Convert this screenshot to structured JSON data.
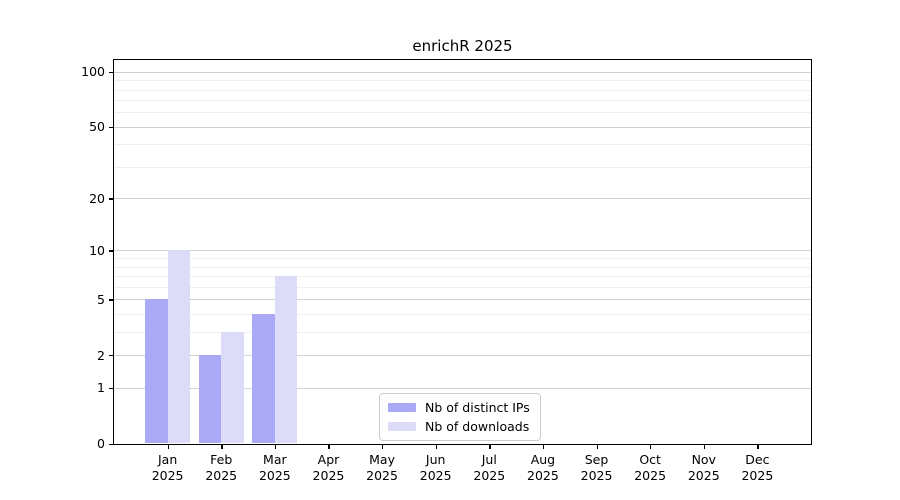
{
  "chart_data": {
    "type": "bar",
    "title": "enrichR 2025",
    "scale": "log1p",
    "x_months": [
      "Jan",
      "Feb",
      "Mar",
      "Apr",
      "May",
      "Jun",
      "Jul",
      "Aug",
      "Sep",
      "Oct",
      "Nov",
      "Dec"
    ],
    "x_year": "2025",
    "series": [
      {
        "name": "Nb of distinct IPs",
        "color": "#a9a9f5",
        "values": [
          5,
          2,
          4,
          0,
          0,
          0,
          0,
          0,
          0,
          0,
          0,
          0
        ]
      },
      {
        "name": "Nb of downloads",
        "color": "#dcdcf9",
        "values": [
          10,
          3,
          7,
          0,
          0,
          0,
          0,
          0,
          0,
          0,
          0,
          0
        ]
      }
    ],
    "y_ticks": [
      0,
      1,
      2,
      5,
      10,
      20,
      50,
      100
    ],
    "y_minor_ticks": [
      3,
      4,
      6,
      7,
      8,
      9,
      30,
      40,
      60,
      70,
      80,
      90
    ],
    "ylim": [
      0,
      116
    ],
    "grid": true,
    "legend_position": "lower center",
    "colors": {
      "grid_major": "#d2d2d2",
      "grid_minor": "#efefef",
      "axis": "#000000",
      "background": "#ffffff"
    }
  }
}
